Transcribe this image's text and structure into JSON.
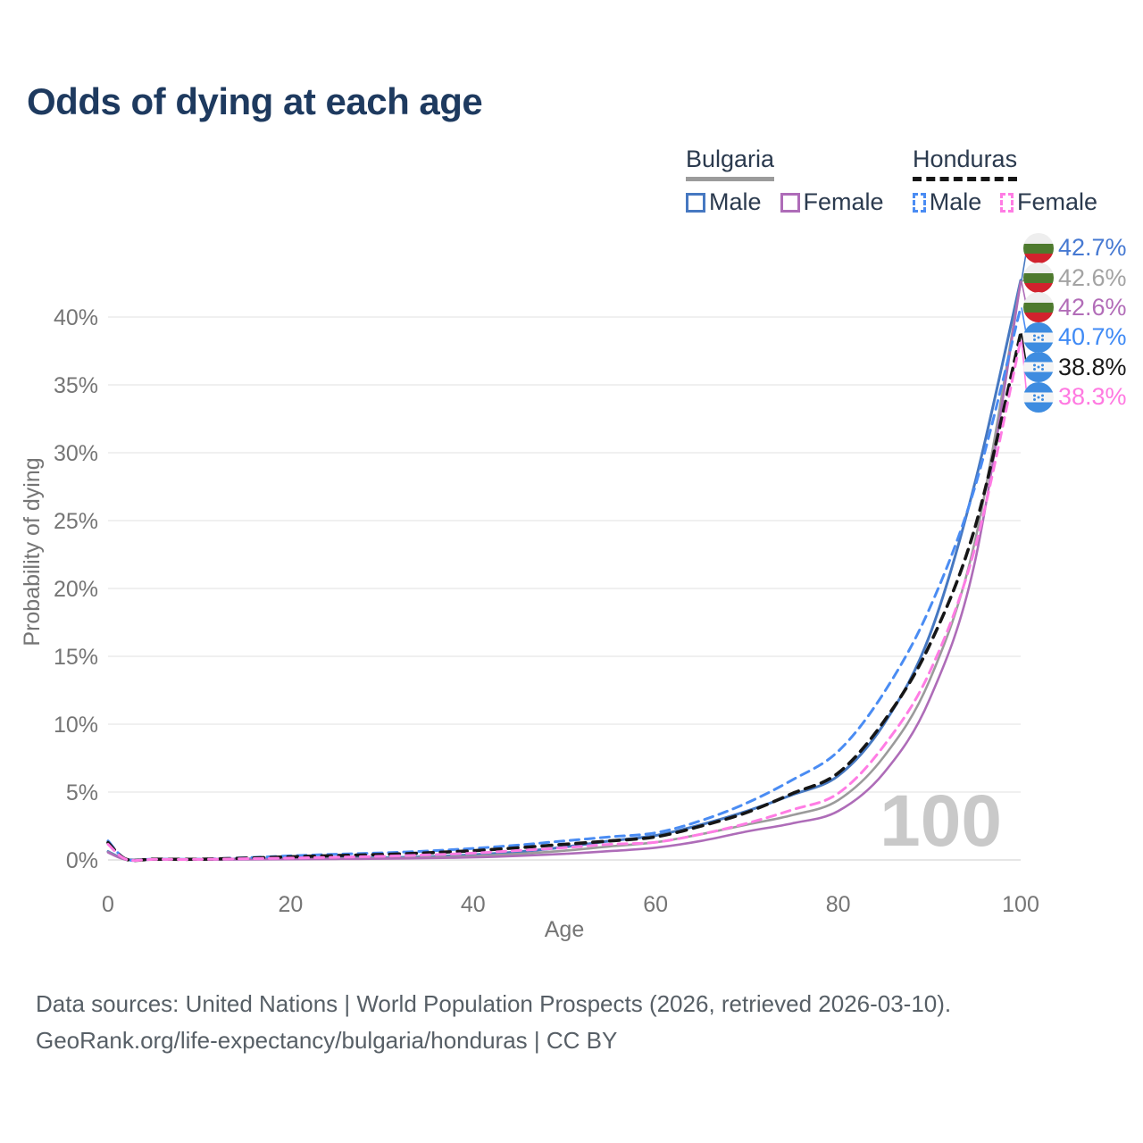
{
  "header": {
    "title": "Odds of dying at each age"
  },
  "legend": {
    "groups": [
      {
        "country": "Bulgaria",
        "line_style": "solid",
        "underline_color": "#9b9b9b",
        "items": [
          {
            "label": "Male",
            "color": "#4678c1",
            "dash": false
          },
          {
            "label": "Female",
            "color": "#ae6cb8",
            "dash": false
          }
        ]
      },
      {
        "country": "Honduras",
        "line_style": "dashed",
        "underline_color": "#161616",
        "items": [
          {
            "label": "Male",
            "color": "#4a8cf3",
            "dash": true
          },
          {
            "label": "Female",
            "color": "#ff7ce4",
            "dash": true
          }
        ]
      }
    ]
  },
  "chart_data": {
    "type": "line",
    "title": "Odds of dying at each age",
    "xlabel": "Age",
    "ylabel": "Probability of dying",
    "x_ticks": [
      0,
      20,
      40,
      60,
      80,
      100
    ],
    "y_ticks": [
      0,
      5,
      10,
      15,
      20,
      25,
      30,
      35,
      40
    ],
    "y_tick_suffix": "%",
    "xlim": [
      0,
      100
    ],
    "ylim_pct": [
      0,
      43
    ],
    "grid": "horizontal",
    "watermark": "100",
    "ages": [
      0,
      2,
      5,
      10,
      15,
      20,
      25,
      30,
      35,
      40,
      45,
      50,
      55,
      60,
      65,
      70,
      75,
      80,
      85,
      90,
      95,
      100
    ],
    "series": [
      {
        "name": "Bulgaria Male",
        "country": "Bulgaria",
        "flag": "bg",
        "color": "#4678c1",
        "dash": false,
        "width": 3,
        "end_label": "42.7%",
        "label_color": "#4679d2",
        "values_pct": [
          0.62,
          0.04,
          0.04,
          0.04,
          0.07,
          0.1,
          0.13,
          0.16,
          0.24,
          0.38,
          0.6,
          0.95,
          1.4,
          1.8,
          2.6,
          3.6,
          4.8,
          6.2,
          10.0,
          16.5,
          27.8,
          42.7
        ]
      },
      {
        "name": "Bulgaria",
        "country": "Bulgaria",
        "flag": "bg",
        "color": "#9b9b9b",
        "dash": false,
        "width": 2.6,
        "end_label": "42.6%",
        "label_color": "#a3a3a3",
        "values_pct": [
          0.58,
          0.03,
          0.03,
          0.03,
          0.05,
          0.08,
          0.1,
          0.12,
          0.18,
          0.28,
          0.45,
          0.68,
          1.0,
          1.3,
          1.9,
          2.6,
          3.3,
          4.4,
          7.6,
          13.2,
          23.5,
          42.6
        ]
      },
      {
        "name": "Bulgaria Female",
        "country": "Bulgaria",
        "flag": "bg",
        "color": "#ae6cb8",
        "dash": false,
        "width": 2.6,
        "end_label": "42.6%",
        "label_color": "#b26db8",
        "values_pct": [
          0.55,
          0.02,
          0.02,
          0.02,
          0.04,
          0.05,
          0.07,
          0.09,
          0.13,
          0.19,
          0.3,
          0.45,
          0.65,
          0.9,
          1.4,
          2.1,
          2.7,
          3.6,
          6.4,
          11.8,
          22.0,
          42.6
        ]
      },
      {
        "name": "Honduras Male",
        "country": "Honduras",
        "flag": "hn",
        "color": "#4a8cf3",
        "dash": true,
        "width": 3,
        "end_label": "40.7%",
        "label_color": "#3f8af5",
        "values_pct": [
          1.4,
          0.06,
          0.06,
          0.06,
          0.16,
          0.3,
          0.42,
          0.52,
          0.66,
          0.85,
          1.1,
          1.4,
          1.7,
          2.0,
          2.9,
          4.2,
          5.9,
          8.0,
          12.3,
          18.5,
          27.5,
          40.7
        ]
      },
      {
        "name": "Honduras",
        "country": "Honduras",
        "flag": "hn",
        "color": "#161616",
        "dash": true,
        "width": 3.6,
        "end_label": "38.8%",
        "label_color": "#1a1a1a",
        "values_pct": [
          1.28,
          0.05,
          0.05,
          0.05,
          0.13,
          0.23,
          0.32,
          0.4,
          0.52,
          0.68,
          0.9,
          1.15,
          1.4,
          1.7,
          2.5,
          3.5,
          4.9,
          6.4,
          10.2,
          15.8,
          24.5,
          38.8
        ]
      },
      {
        "name": "Honduras Female",
        "country": "Honduras",
        "flag": "hn",
        "color": "#ff7ce4",
        "dash": true,
        "width": 3,
        "end_label": "38.3%",
        "label_color": "#ff79e1",
        "values_pct": [
          1.15,
          0.04,
          0.04,
          0.04,
          0.09,
          0.14,
          0.2,
          0.27,
          0.37,
          0.5,
          0.7,
          0.9,
          1.15,
          1.3,
          1.9,
          2.7,
          3.7,
          4.9,
          8.4,
          13.8,
          23.0,
          38.3
        ]
      }
    ],
    "flag_colors": {
      "bulgaria_white": "#eeeeee",
      "bulgaria_green": "#4e7a2e",
      "bulgaria_red": "#d2222d",
      "honduras_blue": "#3e8ce0",
      "honduras_white": "#f4f4f4"
    }
  },
  "footer": {
    "line1": "Data sources: United Nations | World Population Prospects (2026, retrieved 2026-03-10).",
    "line2": "GeoRank.org/life-expectancy/bulgaria/honduras | CC BY"
  }
}
